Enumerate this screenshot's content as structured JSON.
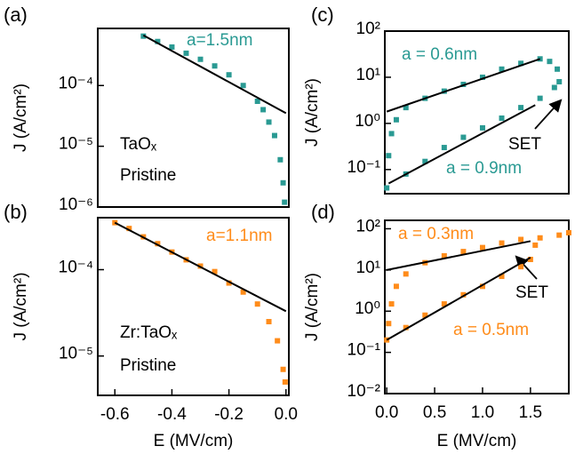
{
  "chart_data": [
    {
      "type": "scatter",
      "panel_label": "(a)",
      "ylabel": "J (A/cm²)",
      "log_y": true,
      "xlim": [
        -0.66,
        0.01
      ],
      "ylim": [
        1e-06,
        0.00087
      ],
      "yticks": [
        {
          "value": 0.0001,
          "label": "10⁻⁴"
        },
        {
          "value": 1e-05,
          "label": "10⁻⁵"
        },
        {
          "value": 1e-06,
          "label": "10⁻⁶"
        }
      ],
      "series": [
        {
          "color": "#2a9a93",
          "x": [
            -0.5,
            -0.45,
            -0.4,
            -0.35,
            -0.3,
            -0.25,
            -0.2,
            -0.15,
            -0.1,
            -0.08,
            -0.06,
            -0.04,
            -0.02,
            -0.01,
            -0.005
          ],
          "y": [
            0.00065,
            0.00053,
            0.00043,
            0.00034,
            0.00027,
            0.00021,
            0.00015,
            0.0001,
            5.5e-05,
            4e-05,
            2.5e-05,
            1.5e-05,
            6e-06,
            2.5e-06,
            1.2e-06
          ]
        }
      ],
      "fits": [
        {
          "color": "#000000",
          "x": [
            -0.5,
            0
          ],
          "y": [
            0.00067,
            3.5e-05
          ]
        }
      ],
      "annotations": [
        {
          "text": "a=1.5nm",
          "color": "#2a9a93"
        },
        {
          "text": "TaOₓ",
          "color": "#000000"
        },
        {
          "text": "Pristine",
          "color": "#000000"
        }
      ]
    },
    {
      "type": "scatter",
      "panel_label": "(b)",
      "ylabel": "J (A/cm²)",
      "xlabel": "E (MV/cm)",
      "log_y": true,
      "xlim": [
        -0.66,
        0.01
      ],
      "ylim": [
        3.5e-06,
        0.0004
      ],
      "xticks": [
        -0.6,
        -0.4,
        -0.2,
        {
          "value": 0,
          "label": "0.0"
        }
      ],
      "yticks": [
        {
          "value": 0.0001,
          "label": "10⁻⁴"
        },
        {
          "value": 1e-05,
          "label": "10⁻⁵"
        }
      ],
      "series": [
        {
          "color": "#ff8c1a",
          "x": [
            -0.6,
            -0.55,
            -0.5,
            -0.45,
            -0.4,
            -0.35,
            -0.3,
            -0.25,
            -0.2,
            -0.15,
            -0.1,
            -0.06,
            -0.03,
            -0.01,
            -0.003
          ],
          "y": [
            0.00035,
            0.0003,
            0.00024,
            0.0002,
            0.00016,
            0.00013,
            0.00011,
            9.5e-05,
            7e-05,
            5.5e-05,
            4e-05,
            2.5e-05,
            1.5e-05,
            7e-06,
            5e-06
          ]
        }
      ],
      "fits": [
        {
          "color": "#000000",
          "x": [
            -0.6,
            0
          ],
          "y": [
            0.00035,
            3.3e-05
          ]
        }
      ],
      "annotations": [
        {
          "text": "a=1.1nm",
          "color": "#ff8c1a"
        },
        {
          "text": "Zr:TaOₓ",
          "color": "#000000"
        },
        {
          "text": "Pristine",
          "color": "#000000"
        }
      ]
    },
    {
      "type": "scatter",
      "panel_label": "(c)",
      "ylabel": "J (A/cm²)",
      "log_y": true,
      "xlim": [
        -0.02,
        1.9
      ],
      "ylim": [
        0.03,
        100
      ],
      "yticks": [
        {
          "value": 100,
          "label": "10²"
        },
        {
          "value": 10,
          "label": "10¹"
        },
        {
          "value": 1,
          "label": "10⁰"
        },
        {
          "value": 0.1,
          "label": "10⁻¹"
        }
      ],
      "series": [
        {
          "color": "#2a9a93",
          "x": [
            0,
            0.2,
            0.4,
            0.6,
            0.8,
            1.0,
            1.2,
            1.4,
            1.6,
            1.75,
            1.8,
            1.78,
            1.7,
            1.6,
            1.4,
            1.2,
            1.0,
            0.8,
            0.6,
            0.4,
            0.2,
            0.1,
            0.05,
            0.02
          ],
          "y": [
            0.04,
            0.08,
            0.15,
            0.3,
            0.5,
            0.8,
            1.3,
            2.2,
            3.5,
            6,
            8,
            15,
            22,
            25,
            20,
            15,
            10,
            7,
            5,
            3.5,
            2.2,
            1.2,
            0.6,
            0.2
          ]
        }
      ],
      "fits": [
        {
          "color": "#000000",
          "x": [
            0.02,
            1.55
          ],
          "y": [
            0.05,
            2.5
          ]
        },
        {
          "color": "#000000",
          "x": [
            0,
            1.6
          ],
          "y": [
            1.8,
            25
          ]
        }
      ],
      "annotations": [
        {
          "text": "a = 0.6nm",
          "color": "#2a9a93"
        },
        {
          "text": "SET",
          "color": "#000000"
        },
        {
          "text": "a = 0.9nm",
          "color": "#2a9a93"
        }
      ]
    },
    {
      "type": "scatter",
      "panel_label": "(d)",
      "ylabel": "J (A/cm²)",
      "xlabel": "E (MV/cm)",
      "log_y": true,
      "xlim": [
        -0.02,
        1.9
      ],
      "ylim": [
        0.01,
        160
      ],
      "xticks": [
        {
          "value": 0,
          "label": "0.0"
        },
        0.5,
        {
          "value": 1,
          "label": "1.0"
        },
        1.5
      ],
      "yticks": [
        {
          "value": 100,
          "label": "10²"
        },
        {
          "value": 10,
          "label": "10¹"
        },
        {
          "value": 1,
          "label": "10⁰"
        },
        {
          "value": 0.1,
          "label": "10⁻¹"
        },
        {
          "value": 0.01,
          "label": "10⁻²"
        }
      ],
      "series": [
        {
          "color": "#ff8c1a",
          "x": [
            0,
            0.2,
            0.4,
            0.6,
            0.8,
            1.0,
            1.2,
            1.4,
            1.5,
            1.55,
            1.6,
            1.8,
            1.9,
            1.4,
            1.2,
            1.0,
            0.8,
            0.6,
            0.4,
            0.2,
            0.1,
            0.05,
            0.02
          ],
          "y": [
            0.2,
            0.4,
            0.8,
            1.5,
            2.5,
            4,
            7,
            12,
            18,
            40,
            60,
            70,
            80,
            55,
            45,
            35,
            28,
            22,
            15,
            8,
            4,
            1.5,
            0.5
          ]
        }
      ],
      "fits": [
        {
          "color": "#000000",
          "x": [
            0,
            1.5
          ],
          "y": [
            10,
            50
          ]
        },
        {
          "color": "#000000",
          "x": [
            0,
            1.5
          ],
          "y": [
            0.2,
            20
          ]
        }
      ],
      "annotations": [
        {
          "text": "a = 0.3nm",
          "color": "#ff8c1a"
        },
        {
          "text": "SET",
          "color": "#000000"
        },
        {
          "text": "a = 0.5nm",
          "color": "#ff8c1a"
        }
      ]
    }
  ]
}
